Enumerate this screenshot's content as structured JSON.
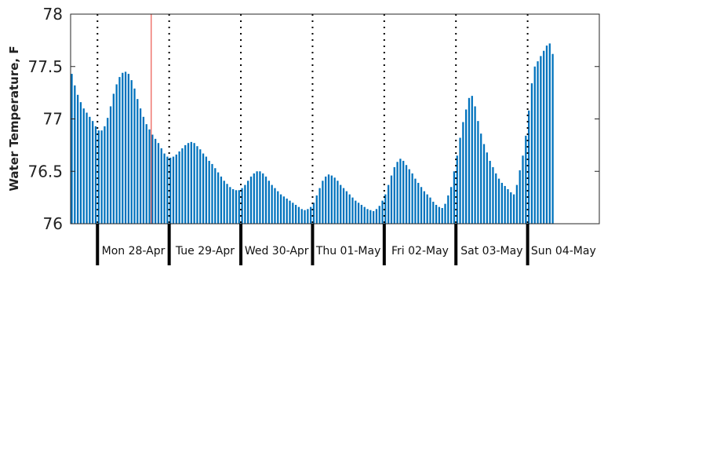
{
  "chart_data": {
    "type": "bar",
    "title": "",
    "xlabel": "",
    "ylabel": "Water Temperature, F",
    "ylim": [
      76,
      78
    ],
    "yticks": [
      "76",
      "76.5",
      "77",
      "77.5",
      "78"
    ],
    "grid": false,
    "colors": {
      "bars": "#0072bd",
      "day_boundary": "#000000",
      "marker": "#e8342a"
    },
    "days": [
      "Mon 28-Apr",
      "Tue 29-Apr",
      "Wed 30-Apr",
      "Thu 01-May",
      "Fri 02-May",
      "Sat 03-May",
      "Sun 04-May"
    ],
    "x_start": "2025-04-27 15:00",
    "x_end": "2025-05-05 00:00",
    "interval_hours": 1,
    "marker_time": "2025-04-28 18:00",
    "values": [
      77.43,
      77.32,
      77.23,
      77.16,
      77.1,
      77.06,
      77.02,
      76.98,
      76.93,
      76.89,
      76.89,
      76.93,
      77.01,
      77.12,
      77.24,
      77.33,
      77.4,
      77.44,
      77.45,
      77.43,
      77.37,
      77.29,
      77.19,
      77.1,
      77.02,
      76.95,
      76.9,
      76.85,
      76.81,
      76.77,
      76.72,
      76.67,
      76.64,
      76.63,
      76.64,
      76.66,
      76.69,
      76.72,
      76.75,
      76.77,
      76.78,
      76.77,
      76.74,
      76.71,
      76.67,
      76.64,
      76.6,
      76.57,
      76.53,
      76.49,
      76.45,
      76.41,
      76.38,
      76.35,
      76.33,
      76.32,
      76.32,
      76.34,
      76.37,
      76.41,
      76.45,
      76.48,
      76.5,
      76.5,
      76.48,
      76.45,
      76.41,
      76.37,
      76.34,
      76.31,
      76.28,
      76.26,
      76.24,
      76.22,
      76.2,
      76.18,
      76.16,
      76.14,
      76.13,
      76.14,
      76.16,
      76.2,
      76.27,
      76.34,
      76.41,
      76.45,
      76.47,
      76.46,
      76.44,
      76.41,
      76.37,
      76.34,
      76.31,
      76.28,
      76.25,
      76.22,
      76.2,
      76.18,
      76.16,
      76.14,
      76.13,
      76.12,
      76.14,
      76.17,
      76.22,
      76.28,
      76.37,
      76.46,
      76.54,
      76.59,
      76.62,
      76.6,
      76.56,
      76.52,
      76.48,
      76.43,
      76.39,
      76.35,
      76.31,
      76.28,
      76.25,
      76.21,
      76.18,
      76.16,
      76.15,
      76.19,
      76.27,
      76.35,
      76.5,
      76.65,
      76.82,
      76.97,
      77.09,
      77.2,
      77.22,
      77.12,
      76.98,
      76.86,
      76.76,
      76.68,
      76.6,
      76.54,
      76.48,
      76.43,
      76.39,
      76.36,
      76.33,
      76.3,
      76.28,
      76.37,
      76.51,
      76.65,
      76.84,
      77.08,
      77.34,
      77.5,
      77.55,
      77.6,
      77.65,
      77.7,
      77.72,
      77.62
    ]
  }
}
